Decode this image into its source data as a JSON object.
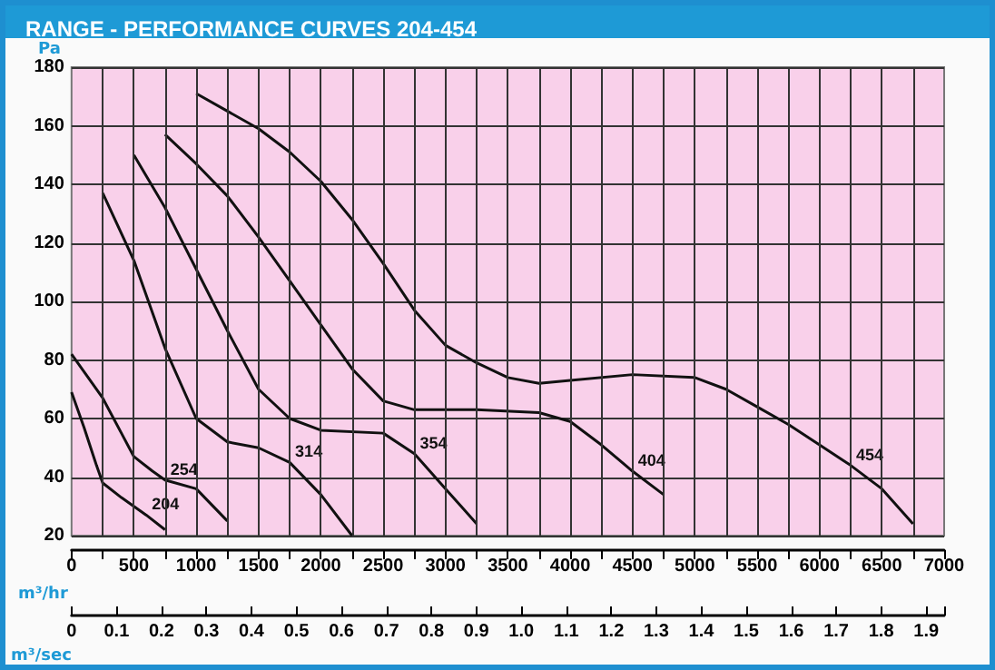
{
  "chart_data": {
    "type": "line",
    "title": "RANGE - PERFORMANCE CURVES 204-454",
    "xlabel": "m³/hr",
    "ylabel": "Pa",
    "x2label": "m³/sec",
    "xlim": [
      0,
      7000
    ],
    "xticks": [
      0,
      {
        "value": 250,
        "label": null
      },
      500,
      {
        "value": 750,
        "label": null
      },
      1000,
      {
        "value": 1250,
        "label": null
      },
      1500,
      {
        "value": 1750,
        "label": null
      },
      2000,
      {
        "value": 2250,
        "label": null
      },
      2500,
      {
        "value": 2750,
        "label": null
      },
      3000,
      {
        "value": 3250,
        "label": null
      },
      3500,
      {
        "value": 3750,
        "label": null
      },
      4000,
      {
        "value": 4250,
        "label": null
      },
      4500,
      {
        "value": 4750,
        "label": null
      },
      5000,
      {
        "value": 5250,
        "label": null
      },
      5500,
      {
        "value": 5750,
        "label": null
      },
      6000,
      {
        "value": 6250,
        "label": null
      },
      6500,
      {
        "value": 6750,
        "label": null
      },
      7000
    ],
    "ylim": [
      20,
      180
    ],
    "yticks": [
      20,
      40,
      60,
      80,
      100,
      120,
      140,
      160,
      180
    ],
    "x2lim": [
      0,
      1.94
    ],
    "x2ticks": [
      0,
      0.1,
      0.2,
      0.3,
      0.4,
      0.5,
      0.6,
      0.7,
      0.8,
      0.9,
      {
        "value": 1,
        "label": "1.0"
      },
      1.1,
      1.2,
      1.3,
      1.4,
      1.5,
      1.6,
      1.7,
      1.8,
      1.9
    ],
    "grid": true,
    "legend": false,
    "marker": "none",
    "line_style": "solid",
    "series": [
      {
        "name": "204",
        "color": "#111111",
        "x": [
          0,
          100,
          200,
          250,
          400,
          600,
          750
        ],
        "values": [
          69,
          57,
          44,
          38,
          33,
          27,
          22
        ]
      },
      {
        "name": "254",
        "color": "#111111",
        "x": [
          0,
          250,
          400,
          500,
          650,
          750,
          1000,
          1250
        ],
        "values": [
          82,
          67,
          55,
          47,
          42,
          39,
          36,
          25
        ]
      },
      {
        "name": "314",
        "color": "#111111",
        "x": [
          250,
          500,
          750,
          1000,
          1250,
          1500,
          1750,
          2000,
          2250
        ],
        "values": [
          137,
          114,
          84,
          60,
          52,
          50,
          45,
          34,
          20
        ]
      },
      {
        "name": "354",
        "color": "#111111",
        "x": [
          500,
          750,
          1000,
          1250,
          1500,
          1750,
          2000,
          2500,
          2750,
          3000,
          3250
        ],
        "values": [
          150,
          132,
          111,
          90,
          70,
          60,
          56,
          55,
          48,
          36,
          24
        ]
      },
      {
        "name": "404",
        "color": "#111111",
        "x": [
          750,
          1000,
          1250,
          1500,
          1750,
          2000,
          2250,
          2500,
          2750,
          3250,
          3750,
          4000,
          4250,
          4500,
          4750
        ],
        "values": [
          157,
          147,
          136,
          122,
          107,
          92,
          77,
          66,
          63,
          63,
          62,
          59,
          51,
          42,
          34
        ]
      },
      {
        "name": "454",
        "color": "#111111",
        "x": [
          1000,
          1250,
          1500,
          1750,
          2000,
          2250,
          2500,
          2750,
          3000,
          3250,
          3500,
          3750,
          4000,
          4500,
          5000,
          5250,
          5500,
          5750,
          6000,
          6250,
          6500,
          6750
        ],
        "values": [
          171,
          165,
          159,
          151,
          141,
          128,
          113,
          97,
          85,
          79,
          74,
          72,
          73,
          75,
          74,
          70,
          64,
          58,
          51,
          44,
          36,
          24
        ]
      }
    ]
  }
}
